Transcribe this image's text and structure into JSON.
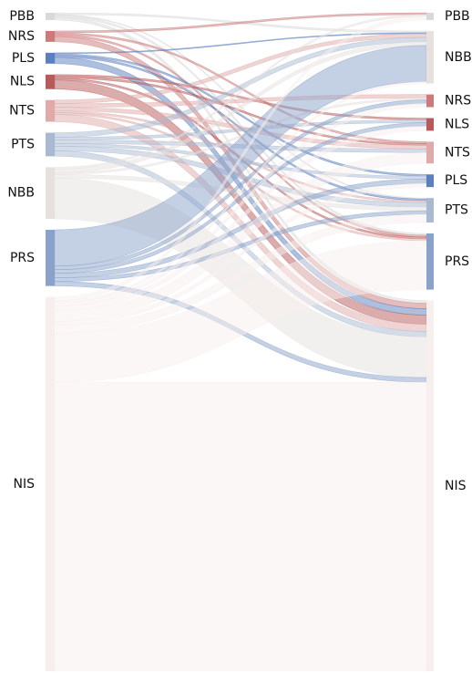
{
  "chart_data": {
    "type": "sankey",
    "nodes": [
      {
        "name": "PBB",
        "color": "#d9d9d9"
      },
      {
        "name": "NRS",
        "color": "#cc7a7a"
      },
      {
        "name": "PLS",
        "color": "#5b80bd"
      },
      {
        "name": "NLS",
        "color": "#b85a5a"
      },
      {
        "name": "NTS",
        "color": "#e0aaaa"
      },
      {
        "name": "PTS",
        "color": "#a9b9d2"
      },
      {
        "name": "NBB",
        "color": "#e6e1df"
      },
      {
        "name": "PRS",
        "color": "#8aa1c9"
      },
      {
        "name": "NIS",
        "color": "#f7efed"
      }
    ],
    "left_nodes": [
      "PBB",
      "NRS",
      "PLS",
      "NLS",
      "NTS",
      "PTS",
      "NBB",
      "PRS",
      "NIS"
    ],
    "right_nodes": [
      "PBB",
      "NBB",
      "NRS",
      "NLS",
      "NTS",
      "PLS",
      "PTS",
      "PRS",
      "NIS"
    ],
    "links": [
      {
        "source": "PBB",
        "target": "NBB",
        "value": 2
      },
      {
        "source": "PBB",
        "target": "PTS",
        "value": 1
      },
      {
        "source": "PBB",
        "target": "PRS",
        "value": 2
      },
      {
        "source": "PBB",
        "target": "NIS",
        "value": 3
      },
      {
        "source": "NRS",
        "target": "PBB",
        "value": 2
      },
      {
        "source": "NRS",
        "target": "NTS",
        "value": 2
      },
      {
        "source": "NRS",
        "target": "PRS",
        "value": 2
      },
      {
        "source": "NRS",
        "target": "NIS",
        "value": 6
      },
      {
        "source": "PLS",
        "target": "NBB",
        "value": 1
      },
      {
        "source": "PLS",
        "target": "PLS",
        "value": 2
      },
      {
        "source": "PLS",
        "target": "PTS",
        "value": 2
      },
      {
        "source": "PLS",
        "target": "NIS",
        "value": 7
      },
      {
        "source": "NLS",
        "target": "NLS",
        "value": 2
      },
      {
        "source": "NLS",
        "target": "NTS",
        "value": 2
      },
      {
        "source": "NLS",
        "target": "PRS",
        "value": 2
      },
      {
        "source": "NLS",
        "target": "NIS",
        "value": 10
      },
      {
        "source": "NTS",
        "target": "NBB",
        "value": 4
      },
      {
        "source": "NTS",
        "target": "NRS",
        "value": 4
      },
      {
        "source": "NTS",
        "target": "NTS",
        "value": 4
      },
      {
        "source": "NTS",
        "target": "PTS",
        "value": 2
      },
      {
        "source": "NTS",
        "target": "PRS",
        "value": 2
      },
      {
        "source": "NTS",
        "target": "NIS",
        "value": 8
      },
      {
        "source": "PTS",
        "target": "NBB",
        "value": 5
      },
      {
        "source": "PTS",
        "target": "NLS",
        "value": 3
      },
      {
        "source": "PTS",
        "target": "NTS",
        "value": 4
      },
      {
        "source": "PTS",
        "target": "PLS",
        "value": 3
      },
      {
        "source": "PTS",
        "target": "PTS",
        "value": 5
      },
      {
        "source": "PTS",
        "target": "NIS",
        "value": 6
      },
      {
        "source": "NBB",
        "target": "PBB",
        "value": 2
      },
      {
        "source": "NBB",
        "target": "NBB",
        "value": 4
      },
      {
        "source": "NBB",
        "target": "NRS",
        "value": 2
      },
      {
        "source": "NBB",
        "target": "PTS",
        "value": 4
      },
      {
        "source": "NBB",
        "target": "NIS",
        "value": 45
      },
      {
        "source": "PRS",
        "target": "NBB",
        "value": 40
      },
      {
        "source": "PRS",
        "target": "NRS",
        "value": 4
      },
      {
        "source": "PRS",
        "target": "NLS",
        "value": 4
      },
      {
        "source": "PRS",
        "target": "PLS",
        "value": 5
      },
      {
        "source": "PRS",
        "target": "PTS",
        "value": 4
      },
      {
        "source": "PRS",
        "target": "NIS",
        "value": 5
      },
      {
        "source": "NIS",
        "target": "PBB",
        "value": 4
      },
      {
        "source": "NIS",
        "target": "NBB",
        "value": 2
      },
      {
        "source": "NIS",
        "target": "NRS",
        "value": 4
      },
      {
        "source": "NIS",
        "target": "NLS",
        "value": 5
      },
      {
        "source": "NIS",
        "target": "NTS",
        "value": 12
      },
      {
        "source": "NIS",
        "target": "PLS",
        "value": 4
      },
      {
        "source": "NIS",
        "target": "PTS",
        "value": 9
      },
      {
        "source": "NIS",
        "target": "PRS",
        "value": 54
      },
      {
        "source": "NIS",
        "target": "NIS",
        "value": 319
      }
    ]
  }
}
